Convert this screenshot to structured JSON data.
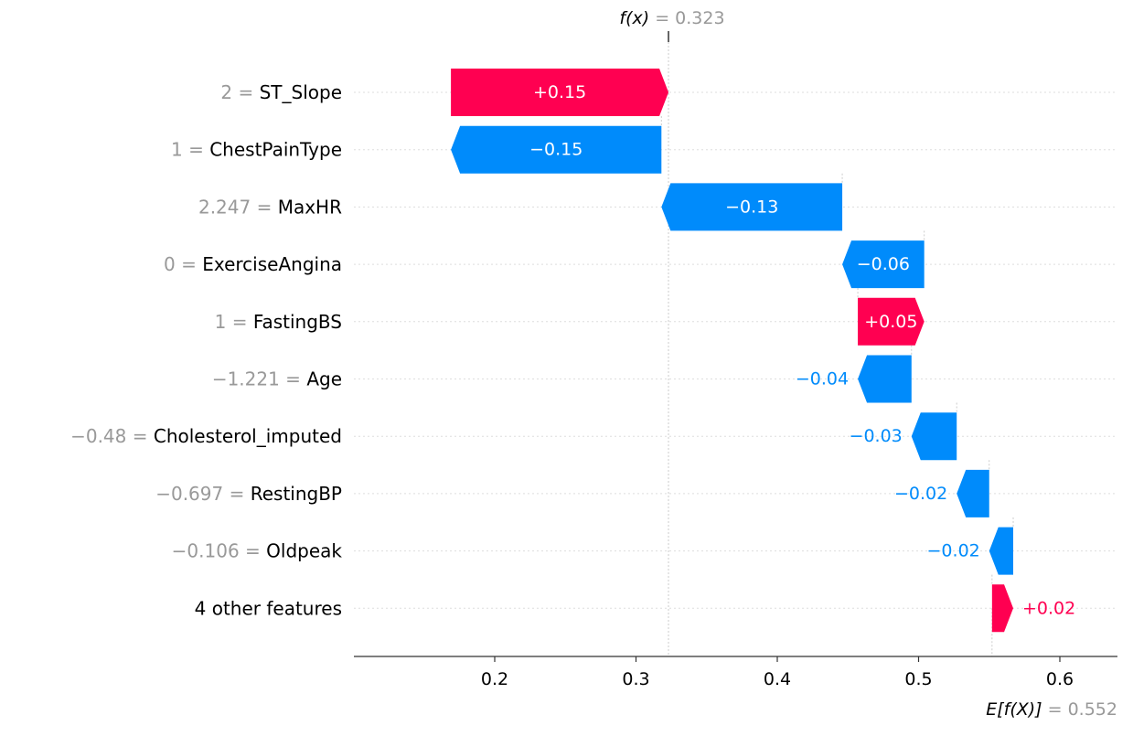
{
  "chart_data": {
    "type": "waterfall",
    "fx_label": "f(x)",
    "fx_value": "0.323",
    "ex_label": "E[f(X)]",
    "ex_value": "0.552",
    "fx": 0.323,
    "ex": 0.552,
    "xlim": [
      0.1,
      0.64
    ],
    "xticks": [
      0.2,
      0.3,
      0.4,
      0.5,
      0.6
    ],
    "xtick_labels": [
      "0.2",
      "0.3",
      "0.4",
      "0.5",
      "0.6"
    ],
    "colors": {
      "positive": "#ff0051",
      "negative": "#008bfb",
      "axis": "#333333",
      "grid": "#cccccc",
      "value_gray": "#999999"
    },
    "features": [
      {
        "value": "2",
        "name": "ST_Slope",
        "label": "+0.15",
        "start": 0.169,
        "end": 0.323,
        "label_inside": true
      },
      {
        "value": "1",
        "name": "ChestPainType",
        "label": "−0.15",
        "start": 0.318,
        "end": 0.169,
        "label_inside": true
      },
      {
        "value": "2.247",
        "name": "MaxHR",
        "label": "−0.13",
        "start": 0.446,
        "end": 0.318,
        "label_inside": true
      },
      {
        "value": "0",
        "name": "ExerciseAngina",
        "label": "−0.06",
        "start": 0.504,
        "end": 0.446,
        "label_inside": true
      },
      {
        "value": "1",
        "name": "FastingBS",
        "label": "+0.05",
        "start": 0.457,
        "end": 0.504,
        "label_inside": true
      },
      {
        "value": "−1.221",
        "name": "Age",
        "label": "−0.04",
        "start": 0.495,
        "end": 0.457,
        "label_inside": false
      },
      {
        "value": "−0.48",
        "name": "Cholesterol_imputed",
        "label": "−0.03",
        "start": 0.527,
        "end": 0.495,
        "label_inside": false
      },
      {
        "value": "−0.697",
        "name": "RestingBP",
        "label": "−0.02",
        "start": 0.55,
        "end": 0.527,
        "label_inside": false
      },
      {
        "value": "−0.106",
        "name": "Oldpeak",
        "label": "−0.02",
        "start": 0.567,
        "end": 0.55,
        "label_inside": false
      },
      {
        "value": "",
        "name": "4 other features",
        "label": "+0.02",
        "start": 0.552,
        "end": 0.567,
        "label_inside": false
      }
    ]
  }
}
